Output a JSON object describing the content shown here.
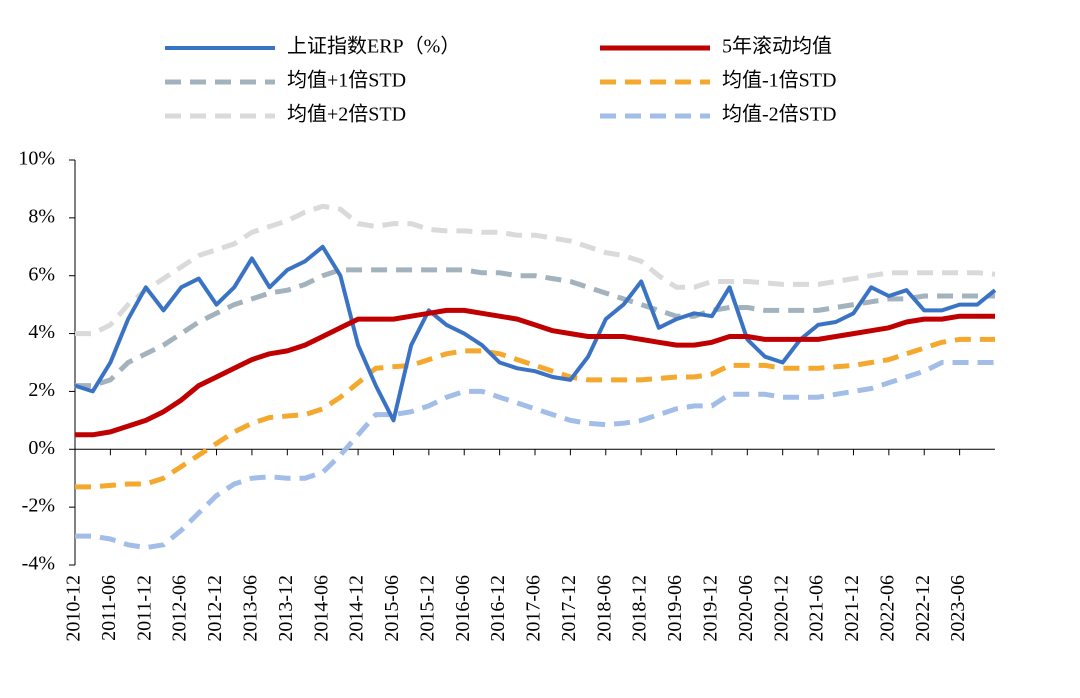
{
  "chart_data": {
    "type": "line",
    "categories": [
      "2010-12",
      null,
      "2011-06",
      null,
      "2011-12",
      null,
      "2012-06",
      null,
      "2012-12",
      null,
      "2013-06",
      null,
      "2013-12",
      null,
      "2014-06",
      null,
      "2014-12",
      null,
      "2015-06",
      null,
      "2015-12",
      null,
      "2016-06",
      null,
      "2016-12",
      null,
      "2017-06",
      null,
      "2017-12",
      null,
      "2018-06",
      null,
      "2018-12",
      null,
      "2019-06",
      null,
      "2019-12",
      null,
      "2020-06",
      null,
      "2020-12",
      null,
      "2021-06",
      null,
      "2021-12",
      null,
      "2022-06",
      null,
      "2022-12",
      null,
      "2023-06",
      null,
      null
    ],
    "series": [
      {
        "name": "上证指数ERP（%）",
        "color": "#3b73c4",
        "dashed": false,
        "values": [
          2.2,
          2.0,
          3.0,
          4.5,
          5.6,
          4.8,
          5.6,
          5.9,
          5.0,
          5.6,
          6.6,
          5.6,
          6.2,
          6.5,
          7.0,
          6.0,
          3.6,
          2.2,
          1.0,
          3.6,
          4.8,
          4.3,
          4.0,
          3.6,
          3.0,
          2.8,
          2.7,
          2.5,
          2.4,
          3.2,
          4.5,
          5.0,
          5.8,
          4.2,
          4.5,
          4.7,
          4.6,
          5.6,
          3.8,
          3.2,
          3.0,
          3.8,
          4.3,
          4.4,
          4.7,
          5.6,
          5.3,
          5.5,
          4.8,
          4.8,
          5.0,
          5.0,
          5.5
        ]
      },
      {
        "name": "5年滚动均值",
        "color": "#c00000",
        "dashed": false,
        "values": [
          0.5,
          0.5,
          0.6,
          0.8,
          1.0,
          1.3,
          1.7,
          2.2,
          2.5,
          2.8,
          3.1,
          3.3,
          3.4,
          3.6,
          3.9,
          4.2,
          4.5,
          4.5,
          4.5,
          4.6,
          4.7,
          4.8,
          4.8,
          4.7,
          4.6,
          4.5,
          4.3,
          4.1,
          4.0,
          3.9,
          3.9,
          3.9,
          3.8,
          3.7,
          3.6,
          3.6,
          3.7,
          3.9,
          3.9,
          3.8,
          3.8,
          3.8,
          3.8,
          3.9,
          4.0,
          4.1,
          4.2,
          4.4,
          4.5,
          4.5,
          4.6,
          4.6,
          4.6
        ]
      },
      {
        "name": "均值+1倍STD",
        "color": "#a3b3bd",
        "dashed": true,
        "values": [
          2.2,
          2.2,
          2.4,
          3.0,
          3.3,
          3.6,
          4.0,
          4.4,
          4.7,
          5.0,
          5.2,
          5.4,
          5.5,
          5.7,
          6.0,
          6.2,
          6.2,
          6.2,
          6.2,
          6.2,
          6.2,
          6.2,
          6.2,
          6.1,
          6.1,
          6.0,
          6.0,
          5.9,
          5.8,
          5.6,
          5.4,
          5.2,
          5.0,
          4.8,
          4.6,
          4.6,
          4.8,
          4.9,
          4.9,
          4.8,
          4.8,
          4.8,
          4.8,
          4.9,
          5.0,
          5.1,
          5.2,
          5.2,
          5.3,
          5.3,
          5.3,
          5.3,
          5.3
        ]
      },
      {
        "name": "均值-1倍STD",
        "color": "#f5a82e",
        "dashed": true,
        "values": [
          -1.3,
          -1.3,
          -1.25,
          -1.2,
          -1.2,
          -1.0,
          -0.6,
          -0.2,
          0.2,
          0.6,
          0.9,
          1.1,
          1.15,
          1.2,
          1.4,
          1.8,
          2.3,
          2.8,
          2.85,
          2.9,
          3.1,
          3.3,
          3.4,
          3.4,
          3.3,
          3.1,
          2.9,
          2.7,
          2.5,
          2.4,
          2.4,
          2.4,
          2.4,
          2.45,
          2.5,
          2.5,
          2.6,
          2.9,
          2.9,
          2.9,
          2.8,
          2.8,
          2.8,
          2.85,
          2.9,
          3.0,
          3.1,
          3.3,
          3.5,
          3.7,
          3.8,
          3.8,
          3.8
        ]
      },
      {
        "name": "均值+2倍STD",
        "color": "#dadada",
        "dashed": true,
        "values": [
          4.0,
          4.0,
          4.3,
          5.0,
          5.5,
          5.9,
          6.3,
          6.7,
          6.9,
          7.1,
          7.5,
          7.7,
          7.9,
          8.2,
          8.4,
          8.3,
          7.8,
          7.7,
          7.8,
          7.8,
          7.6,
          7.55,
          7.55,
          7.5,
          7.5,
          7.4,
          7.4,
          7.3,
          7.2,
          7.0,
          6.8,
          6.7,
          6.5,
          6.0,
          5.6,
          5.6,
          5.8,
          5.8,
          5.8,
          5.75,
          5.7,
          5.7,
          5.7,
          5.8,
          5.9,
          6.0,
          6.1,
          6.1,
          6.1,
          6.1,
          6.1,
          6.1,
          6.05
        ]
      },
      {
        "name": "均值-2倍STD",
        "color": "#a2bde8",
        "dashed": true,
        "values": [
          -3.0,
          -3.0,
          -3.1,
          -3.3,
          -3.4,
          -3.3,
          -2.8,
          -2.2,
          -1.6,
          -1.2,
          -1.0,
          -0.95,
          -1.0,
          -1.0,
          -0.8,
          -0.2,
          0.5,
          1.2,
          1.2,
          1.3,
          1.5,
          1.8,
          2.0,
          2.0,
          1.8,
          1.6,
          1.4,
          1.2,
          1.0,
          0.9,
          0.85,
          0.9,
          1.0,
          1.2,
          1.4,
          1.5,
          1.5,
          1.9,
          1.9,
          1.9,
          1.8,
          1.8,
          1.8,
          1.9,
          2.0,
          2.1,
          2.3,
          2.5,
          2.7,
          3.0,
          3.0,
          3.0,
          3.0
        ]
      }
    ],
    "ylim": [
      -4,
      10
    ],
    "yticks": [
      {
        "value": -4,
        "label": "-4%"
      },
      {
        "value": -2,
        "label": "-2%"
      },
      {
        "value": 0,
        "label": "0%"
      },
      {
        "value": 2,
        "label": "2%"
      },
      {
        "value": 4,
        "label": "4%"
      },
      {
        "value": 6,
        "label": "6%"
      },
      {
        "value": 8,
        "label": "8%"
      },
      {
        "value": 10,
        "label": "10%"
      }
    ],
    "grid": false,
    "legend": "top"
  }
}
